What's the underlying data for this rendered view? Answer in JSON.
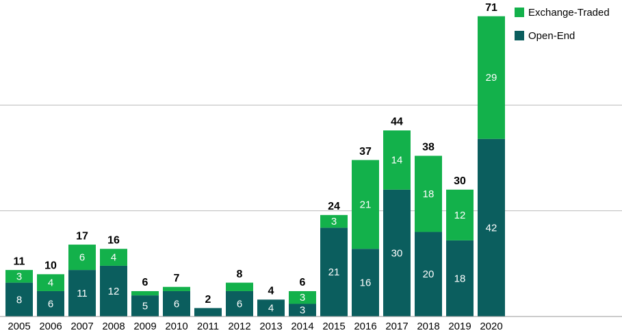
{
  "chart_data": {
    "type": "stacked_bar",
    "categories": [
      "2005",
      "2006",
      "2007",
      "2008",
      "2009",
      "2010",
      "2011",
      "2012",
      "2013",
      "2014",
      "2015",
      "2016",
      "2017",
      "2018",
      "2019",
      "2020"
    ],
    "series": [
      {
        "name": "Open-End",
        "color": "#0b5e5e",
        "values": [
          8,
          6,
          11,
          12,
          5,
          6,
          2,
          6,
          4,
          3,
          21,
          16,
          30,
          20,
          18,
          42
        ]
      },
      {
        "name": "Exchange-Traded",
        "color": "#13b14b",
        "values": [
          3,
          4,
          6,
          4,
          1,
          1,
          0,
          2,
          0,
          3,
          3,
          21,
          14,
          18,
          12,
          29
        ]
      }
    ],
    "totals": [
      11,
      10,
      17,
      16,
      6,
      7,
      2,
      8,
      4,
      6,
      24,
      37,
      44,
      38,
      30,
      71
    ],
    "ylim": [
      0,
      75
    ],
    "yticks": [
      0,
      25,
      50
    ],
    "grid": true,
    "legend": "top-right"
  }
}
